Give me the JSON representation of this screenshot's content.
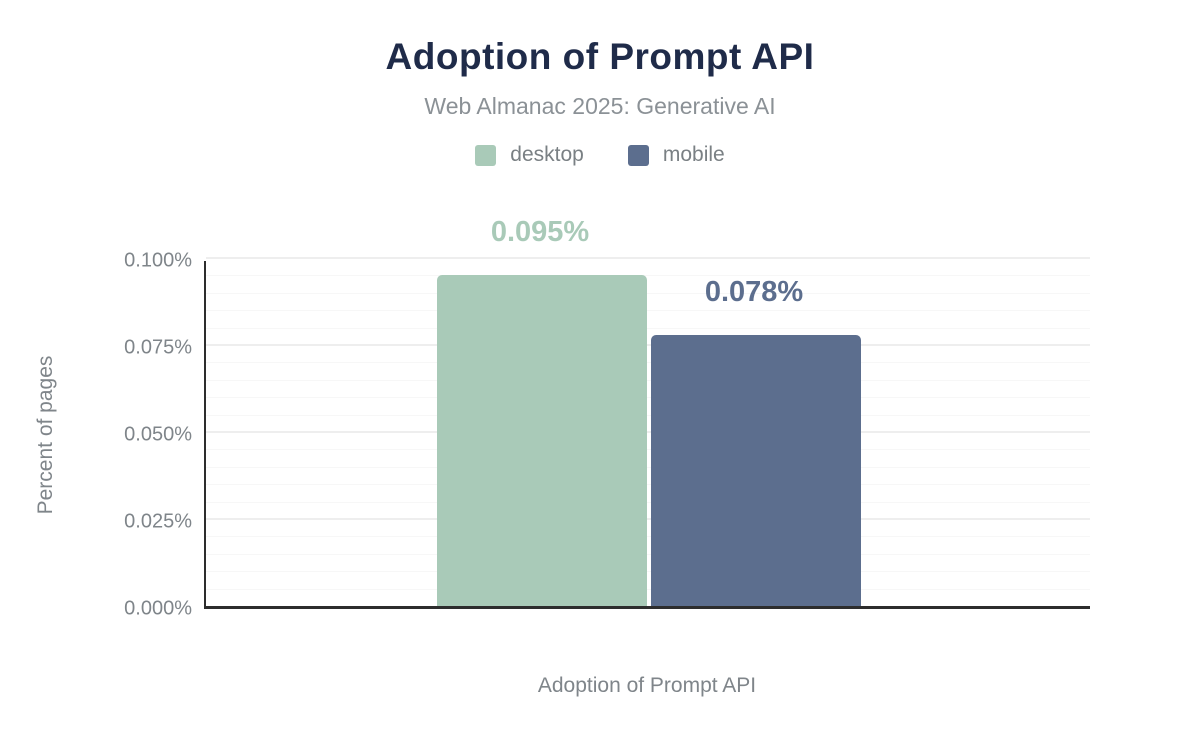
{
  "header": {
    "title": "Adoption of Prompt API",
    "subtitle": "Web Almanac 2025: Generative AI"
  },
  "axes": {
    "y_title": "Percent of pages",
    "x_title": "Adoption of Prompt API"
  },
  "colors": {
    "title_text": "#1f2b49",
    "muted_text": "#7f858a",
    "subtitle_text": "#8b9196",
    "axis_line": "#2d2d2d",
    "desktop": "#a9cab8",
    "mobile": "#5c6e8e"
  },
  "chart_data": {
    "type": "bar",
    "title": "Adoption of Prompt API",
    "subtitle": "Web Almanac 2025: Generative AI",
    "categories": [
      "Adoption of Prompt API"
    ],
    "series": [
      {
        "name": "desktop",
        "values": [
          0.095
        ],
        "data_labels": [
          "0.095%"
        ],
        "color": "#a9cab8"
      },
      {
        "name": "mobile",
        "values": [
          0.078
        ],
        "data_labels": [
          "0.078%"
        ],
        "color": "#5c6e8e"
      }
    ],
    "xlabel": "Adoption of Prompt API",
    "ylabel": "Percent of pages",
    "ylim": [
      0,
      0.1
    ],
    "yticks": [
      {
        "value": 0.0,
        "label": "0.000%"
      },
      {
        "value": 0.025,
        "label": "0.025%"
      },
      {
        "value": 0.05,
        "label": "0.050%"
      },
      {
        "value": 0.075,
        "label": "0.075%"
      },
      {
        "value": 0.1,
        "label": "0.100%"
      }
    ],
    "minor_grid_step": 0.005,
    "major_grid_step": 0.025,
    "grid": "horizontal",
    "legend_position": "top"
  }
}
